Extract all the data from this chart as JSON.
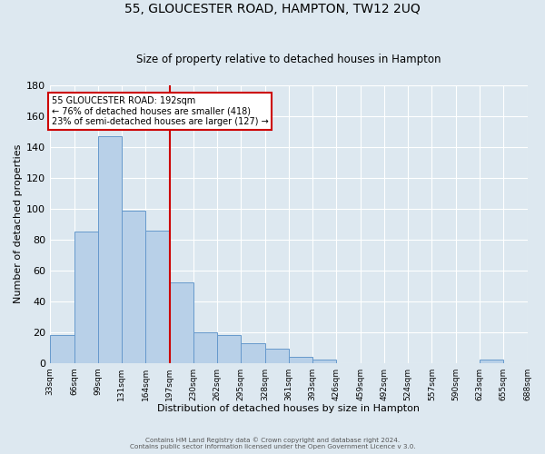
{
  "title1": "55, GLOUCESTER ROAD, HAMPTON, TW12 2UQ",
  "title2": "Size of property relative to detached houses in Hampton",
  "xlabel": "Distribution of detached houses by size in Hampton",
  "ylabel": "Number of detached properties",
  "bar_color": "#b8d0e8",
  "bar_edge_color": "#6699cc",
  "background_color": "#dde8f0",
  "grid_color": "#ffffff",
  "bin_edges": [
    33,
    66,
    99,
    131,
    164,
    197,
    230,
    262,
    295,
    328,
    361,
    393,
    426,
    459,
    492,
    524,
    557,
    590,
    623,
    655,
    688
  ],
  "bin_labels": [
    "33sqm",
    "66sqm",
    "99sqm",
    "131sqm",
    "164sqm",
    "197sqm",
    "230sqm",
    "262sqm",
    "295sqm",
    "328sqm",
    "361sqm",
    "393sqm",
    "426sqm",
    "459sqm",
    "492sqm",
    "524sqm",
    "557sqm",
    "590sqm",
    "623sqm",
    "655sqm",
    "688sqm"
  ],
  "bar_heights": [
    18,
    85,
    147,
    99,
    86,
    52,
    20,
    18,
    13,
    9,
    4,
    2,
    0,
    0,
    0,
    0,
    0,
    0,
    2,
    0
  ],
  "red_line_x": 197,
  "annotation_title": "55 GLOUCESTER ROAD: 192sqm",
  "annotation_line1": "← 76% of detached houses are smaller (418)",
  "annotation_line2": "23% of semi-detached houses are larger (127) →",
  "annotation_box_color": "#ffffff",
  "annotation_box_edge": "#cc0000",
  "red_line_color": "#cc0000",
  "ylim": [
    0,
    180
  ],
  "yticks": [
    0,
    20,
    40,
    60,
    80,
    100,
    120,
    140,
    160,
    180
  ],
  "footer1": "Contains HM Land Registry data © Crown copyright and database right 2024.",
  "footer2": "Contains public sector information licensed under the Open Government Licence v 3.0."
}
